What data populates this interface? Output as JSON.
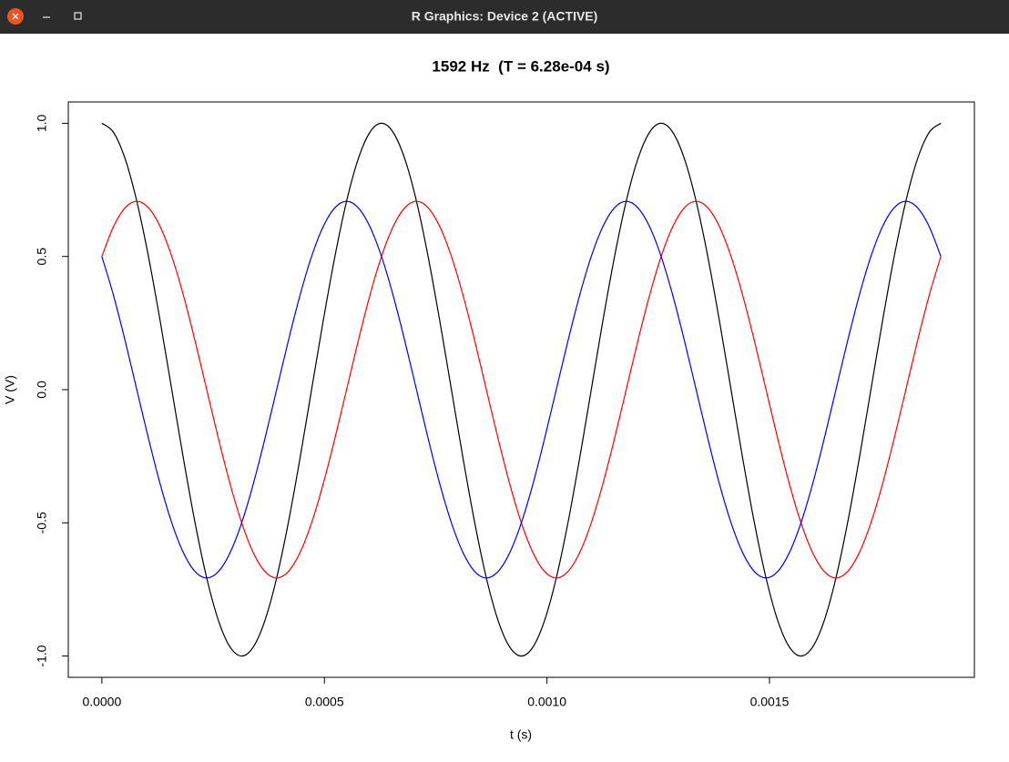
{
  "window": {
    "title": "R Graphics: Device 2 (ACTIVE)"
  },
  "chart_data": {
    "type": "line",
    "title": "1592 Hz  (T = 6.28e-04 s)",
    "x_label": "t (s)",
    "y_label": "V (V)",
    "x": [
      0,
      2.62e-05,
      5.24e-05,
      7.85e-05,
      0.0001047,
      0.0001309,
      0.0001571,
      0.0001833,
      0.0002094,
      0.0002356,
      0.0002618,
      0.000288,
      0.0003142,
      0.0003403,
      0.0003665,
      0.0003927,
      0.0004189,
      0.0004451,
      0.0004712,
      0.0004974,
      0.0005236,
      0.0005498,
      0.000576,
      0.0006021,
      0.0006283,
      0.0006545,
      0.0006807,
      0.0007069,
      0.000733,
      0.0007592,
      0.0007854,
      0.0008116,
      0.0008378,
      0.0008639,
      0.0008901,
      0.0009163,
      0.0009425,
      0.0009687,
      0.0009948,
      0.001021,
      0.0010472,
      0.0010734,
      0.0010996,
      0.0011257,
      0.0011519,
      0.0011781,
      0.0012043,
      0.0012305,
      0.0012566,
      0.0012828,
      0.001309,
      0.0013352,
      0.0013614,
      0.0013875,
      0.0014137,
      0.0014399,
      0.0014661,
      0.0014923,
      0.0015184,
      0.0015446,
      0.0015708,
      0.001597,
      0.0016232,
      0.0016493,
      0.0016755,
      0.0017017,
      0.0017279,
      0.0017541,
      0.0017802,
      0.0018064,
      0.0018326,
      0.0018588,
      0.001885
    ],
    "series": [
      {
        "color": "#000000",
        "values": [
          1,
          0.9659,
          0.866,
          0.7071,
          0.5,
          0.2588,
          0,
          -0.2588,
          -0.5,
          -0.7071,
          -0.866,
          -0.9659,
          -1,
          -0.9659,
          -0.866,
          -0.7071,
          -0.5,
          -0.2588,
          0,
          0.2588,
          0.5,
          0.7071,
          0.866,
          0.9659,
          1,
          0.9659,
          0.866,
          0.7071,
          0.5,
          0.2588,
          0,
          -0.2588,
          -0.5,
          -0.7071,
          -0.866,
          -0.9659,
          -1,
          -0.9659,
          -0.866,
          -0.7071,
          -0.5,
          -0.2588,
          0,
          0.2588,
          0.5,
          0.7071,
          0.866,
          0.9659,
          1,
          0.9659,
          0.866,
          0.7071,
          0.5,
          0.2588,
          0,
          -0.2588,
          -0.5,
          -0.7071,
          -0.866,
          -0.9659,
          -1,
          -0.9659,
          -0.866,
          -0.7071,
          -0.5,
          -0.2588,
          0,
          0.2588,
          0.5,
          0.7071,
          0.866,
          0.9659,
          1
        ]
      },
      {
        "color": "#ff0000",
        "values": [
          0.5,
          0.6124,
          0.683,
          0.7071,
          0.683,
          0.6124,
          0.5,
          0.3536,
          0.183,
          0,
          -0.183,
          -0.3536,
          -0.5,
          -0.6124,
          -0.683,
          -0.7071,
          -0.683,
          -0.6124,
          -0.5,
          -0.3536,
          -0.183,
          0,
          0.183,
          0.3536,
          0.5,
          0.6124,
          0.683,
          0.7071,
          0.683,
          0.6124,
          0.5,
          0.3536,
          0.183,
          0,
          -0.183,
          -0.3536,
          -0.5,
          -0.6124,
          -0.683,
          -0.7071,
          -0.683,
          -0.6124,
          -0.5,
          -0.3536,
          -0.183,
          0,
          0.183,
          0.3536,
          0.5,
          0.6124,
          0.683,
          0.7071,
          0.683,
          0.6124,
          0.5,
          0.3536,
          0.183,
          0,
          -0.183,
          -0.3536,
          -0.5,
          -0.6124,
          -0.683,
          -0.7071,
          -0.683,
          -0.6124,
          -0.5,
          -0.3536,
          -0.183,
          0,
          0.183,
          0.3536,
          0.5
        ]
      },
      {
        "color": "#0000ff",
        "values": [
          0.5,
          0.3536,
          0.183,
          0,
          -0.183,
          -0.3536,
          -0.5,
          -0.6124,
          -0.683,
          -0.7071,
          -0.683,
          -0.6124,
          -0.5,
          -0.3536,
          -0.183,
          0,
          0.183,
          0.3536,
          0.5,
          0.6124,
          0.683,
          0.7071,
          0.683,
          0.6124,
          0.5,
          0.3536,
          0.183,
          0,
          -0.183,
          -0.3536,
          -0.5,
          -0.6124,
          -0.683,
          -0.7071,
          -0.683,
          -0.6124,
          -0.5,
          -0.3536,
          -0.183,
          0,
          0.183,
          0.3536,
          0.5,
          0.6124,
          0.683,
          0.7071,
          0.683,
          0.6124,
          0.5,
          0.3536,
          0.183,
          0,
          -0.183,
          -0.3536,
          -0.5,
          -0.6124,
          -0.683,
          -0.7071,
          -0.683,
          -0.6124,
          -0.5,
          -0.3536,
          -0.183,
          0,
          0.183,
          0.3536,
          0.5,
          0.6124,
          0.683,
          0.7071,
          0.683,
          0.6124,
          0.5
        ]
      }
    ],
    "xlim": [
      -7.54e-05,
      0.0019604
    ],
    "ylim": [
      -1.08,
      1.08
    ],
    "xticks": [
      {
        "value": 0,
        "label": "0.0000"
      },
      {
        "value": 0.0005,
        "label": "0.0005"
      },
      {
        "value": 0.001,
        "label": "0.0010"
      },
      {
        "value": 0.0015,
        "label": "0.0015"
      }
    ],
    "yticks": [
      {
        "value": -1,
        "label": "-1.0"
      },
      -0.5,
      {
        "value": 0,
        "label": "0.0"
      },
      0.5,
      {
        "value": 1,
        "label": "1.0"
      }
    ],
    "grid": false
  }
}
